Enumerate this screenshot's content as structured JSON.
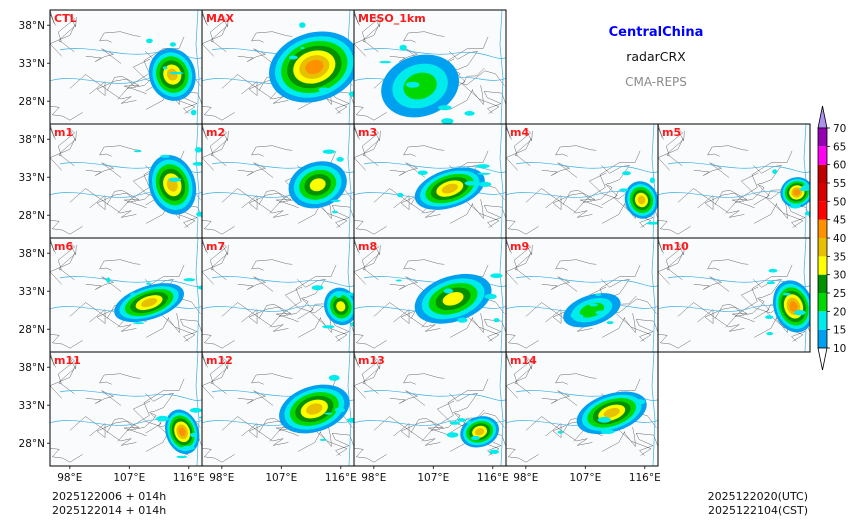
{
  "header": {
    "region": "CentralChina",
    "variable": "radarCRX",
    "system": "CMA-REPS",
    "region_color": "#0000ff",
    "system_color": "#8a8a8a"
  },
  "panels": [
    {
      "label": "CTL",
      "echo": {
        "cx": 113.5,
        "cy": 31.5,
        "rx": 3.5,
        "ry": 3.5,
        "peak": 35
      }
    },
    {
      "label": "MAX",
      "echo": {
        "cx": 112.0,
        "cy": 32.5,
        "rx": 7.0,
        "ry": 4.5,
        "peak": 40
      }
    },
    {
      "label": "MESO_1km",
      "echo": {
        "cx": 105.0,
        "cy": 30.0,
        "rx": 6.0,
        "ry": 4.0,
        "peak": 20
      }
    },
    {
      "label": "m1",
      "echo": {
        "cx": 113.5,
        "cy": 32.0,
        "rx": 3.5,
        "ry": 4.0,
        "peak": 35
      }
    },
    {
      "label": "m2",
      "echo": {
        "cx": 112.5,
        "cy": 32.0,
        "rx": 4.5,
        "ry": 3.0,
        "peak": 30
      }
    },
    {
      "label": "m3",
      "echo": {
        "cx": 109.5,
        "cy": 31.5,
        "rx": 5.5,
        "ry": 2.5,
        "peak": 35
      }
    },
    {
      "label": "m4",
      "echo": {
        "cx": 115.5,
        "cy": 30.0,
        "rx": 2.5,
        "ry": 2.5,
        "peak": 35
      }
    },
    {
      "label": "m5",
      "echo": {
        "cx": 116.0,
        "cy": 31.0,
        "rx": 2.5,
        "ry": 2.0,
        "peak": 40
      }
    },
    {
      "label": "m6",
      "echo": {
        "cx": 110.0,
        "cy": 31.5,
        "rx": 5.5,
        "ry": 2.2,
        "peak": 35
      }
    },
    {
      "label": "m7",
      "echo": {
        "cx": 116.0,
        "cy": 31.0,
        "rx": 2.5,
        "ry": 2.5,
        "peak": 30
      }
    },
    {
      "label": "m8",
      "echo": {
        "cx": 110.0,
        "cy": 32.0,
        "rx": 6.0,
        "ry": 3.0,
        "peak": 30
      }
    },
    {
      "label": "m9",
      "echo": {
        "cx": 108.0,
        "cy": 30.5,
        "rx": 4.5,
        "ry": 2.0,
        "peak": 20
      }
    },
    {
      "label": "m10",
      "echo": {
        "cx": 115.5,
        "cy": 31.0,
        "rx": 3.0,
        "ry": 3.5,
        "peak": 40
      }
    },
    {
      "label": "m11",
      "echo": {
        "cx": 115.0,
        "cy": 29.5,
        "rx": 2.5,
        "ry": 3.0,
        "peak": 40
      }
    },
    {
      "label": "m12",
      "echo": {
        "cx": 112.0,
        "cy": 32.5,
        "rx": 5.5,
        "ry": 3.0,
        "peak": 35
      }
    },
    {
      "label": "m13",
      "echo": {
        "cx": 114.0,
        "cy": 29.5,
        "rx": 3.0,
        "ry": 2.0,
        "peak": 35
      }
    },
    {
      "label": "m14",
      "echo": {
        "cx": 111.0,
        "cy": 32.0,
        "rx": 5.5,
        "ry": 2.5,
        "peak": 35
      }
    }
  ],
  "axes": {
    "lon_range": [
      95,
      118
    ],
    "lat_range": [
      25,
      40
    ],
    "lat_ticks": [
      {
        "value": 38,
        "label": "38°N"
      },
      {
        "value": 33,
        "label": "33°N"
      },
      {
        "value": 28,
        "label": "28°N"
      }
    ],
    "lon_ticks": [
      {
        "value": 98,
        "label": "98°E"
      },
      {
        "value": 107,
        "label": "107°E"
      },
      {
        "value": 116,
        "label": "116°E"
      }
    ]
  },
  "colorbar": {
    "levels": [
      10,
      15,
      20,
      25,
      30,
      35,
      40,
      45,
      50,
      55,
      60,
      65,
      70
    ],
    "colors": [
      "#00a0f0",
      "#00ecec",
      "#00d800",
      "#009000",
      "#ffff00",
      "#e7c000",
      "#ff9000",
      "#ff0000",
      "#d60000",
      "#c00000",
      "#ff00f0",
      "#9600b4",
      "#ad90f0"
    ],
    "extend": "both"
  },
  "footer": {
    "init_line1": "2025122006  +  014h",
    "init_line2": "2025122014  +  014h",
    "valid_utc": "2025122020(UTC)",
    "valid_cst": "2025122104(CST)"
  }
}
